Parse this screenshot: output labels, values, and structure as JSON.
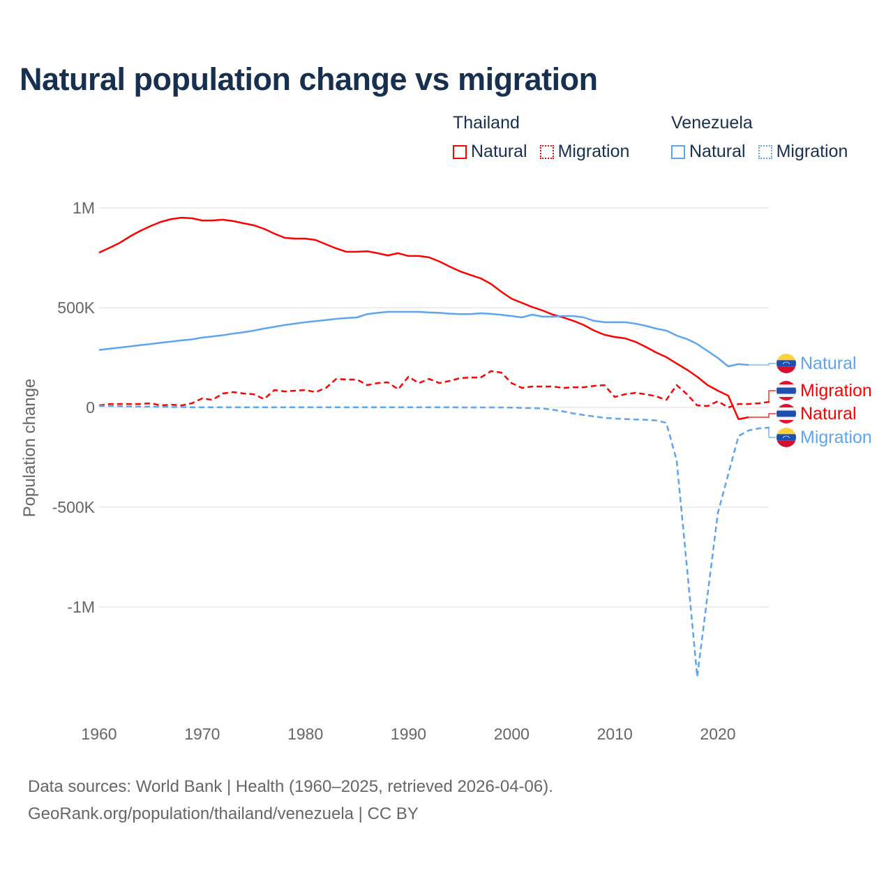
{
  "title": "Natural population change vs migration",
  "legend": {
    "groups": [
      {
        "country": "Thailand",
        "items": [
          {
            "label": "Natural",
            "style": "solid",
            "color": "#ff0000"
          },
          {
            "label": "Migration",
            "style": "dotted",
            "color": "#ff0000"
          }
        ]
      },
      {
        "country": "Venezuela",
        "items": [
          {
            "label": "Natural",
            "style": "solid",
            "color": "#5ea5ee"
          },
          {
            "label": "Migration",
            "style": "dotted",
            "color": "#5ea5ee"
          }
        ]
      }
    ]
  },
  "end_labels": [
    {
      "label": "Natural",
      "country": "Venezuela",
      "color": "#5ea5ee"
    },
    {
      "label": "Migration",
      "country": "Thailand",
      "color": "#ff0000"
    },
    {
      "label": "Natural",
      "country": "Thailand",
      "color": "#ff0000"
    },
    {
      "label": "Migration",
      "country": "Venezuela",
      "color": "#5ea5ee"
    }
  ],
  "footer": {
    "line1": "Data sources: World Bank | Health (1960–2025, retrieved 2026-04-06).",
    "line2": "GeoRank.org/population/thailand/venezuela | CC BY"
  },
  "chart_data": {
    "type": "line",
    "title": "Natural population change vs migration",
    "xlabel": "",
    "ylabel": "Population change",
    "xlim": [
      1960,
      2025
    ],
    "ylim": [
      -1400000,
      1000000
    ],
    "x_ticks": [
      1960,
      1970,
      1980,
      1990,
      2000,
      2010,
      2020
    ],
    "x_tick_labels": [
      "1960",
      "1970",
      "1980",
      "1990",
      "2000",
      "2010",
      "2020"
    ],
    "y_ticks": [
      1000000,
      500000,
      0,
      -500000,
      -1000000
    ],
    "y_tick_labels": [
      "1M",
      "500K",
      "0",
      "-500K",
      "-1M"
    ],
    "grid": true,
    "legend_position": "top-right",
    "series": [
      {
        "name": "Thailand Natural",
        "color": "#ff0000",
        "dash": "solid",
        "start_year": 1960,
        "values": [
          776000,
          800000,
          825000,
          857000,
          885000,
          909000,
          930000,
          944000,
          951000,
          948000,
          937000,
          937000,
          941000,
          934000,
          923000,
          913000,
          895000,
          871000,
          850000,
          846000,
          846000,
          839000,
          818000,
          797000,
          780000,
          780000,
          783000,
          773000,
          762000,
          773000,
          759000,
          759000,
          752000,
          731000,
          706000,
          682000,
          664000,
          647000,
          619000,
          580000,
          545000,
          524000,
          503000,
          486000,
          465000,
          451000,
          434000,
          413000,
          385000,
          364000,
          353000,
          346000,
          329000,
          304000,
          276000,
          252000,
          220000,
          189000,
          154000,
          112000,
          84000,
          59000,
          -59000,
          -49000
        ]
      },
      {
        "name": "Thailand Migration",
        "color": "#ff0000",
        "dash": "dashed",
        "start_year": 1960,
        "values": [
          10000,
          17000,
          17000,
          17000,
          17000,
          21000,
          10000,
          14000,
          10000,
          21000,
          45000,
          38000,
          70000,
          77000,
          70000,
          66000,
          42000,
          87000,
          80000,
          84000,
          87000,
          77000,
          98000,
          143000,
          140000,
          140000,
          112000,
          122000,
          126000,
          91000,
          154000,
          122000,
          143000,
          122000,
          133000,
          147000,
          150000,
          150000,
          182000,
          175000,
          122000,
          98000,
          105000,
          105000,
          105000,
          98000,
          101000,
          101000,
          108000,
          112000,
          52000,
          66000,
          73000,
          66000,
          56000,
          38000,
          112000,
          66000,
          10000,
          7000,
          31000,
          0,
          17000,
          17000,
          21000,
          28000
        ]
      },
      {
        "name": "Venezuela Natural",
        "color": "#5ea5ee",
        "dash": "solid",
        "start_year": 1960,
        "values": [
          288000,
          294000,
          300000,
          306000,
          312000,
          318000,
          324000,
          330000,
          336000,
          341000,
          350000,
          356000,
          362000,
          370000,
          377000,
          385000,
          395000,
          404000,
          413000,
          420000,
          427000,
          433000,
          438000,
          444000,
          448000,
          451000,
          468000,
          474000,
          479000,
          479000,
          479000,
          479000,
          476000,
          474000,
          470000,
          468000,
          468000,
          472000,
          469000,
          464000,
          458000,
          451000,
          465000,
          455000,
          455000,
          458000,
          458000,
          451000,
          434000,
          427000,
          427000,
          427000,
          420000,
          409000,
          395000,
          385000,
          360000,
          343000,
          318000,
          283000,
          248000,
          206000,
          217000,
          213000
        ]
      },
      {
        "name": "Venezuela Migration",
        "color": "#5ea5ee",
        "dash": "dashed",
        "start_year": 1960,
        "values": [
          8000,
          7000,
          6000,
          5000,
          4000,
          4000,
          3000,
          2000,
          2000,
          1000,
          1000,
          1000,
          1000,
          1000,
          1000,
          1000,
          1000,
          1000,
          1000,
          1000,
          1000,
          1000,
          1000,
          1000,
          1000,
          1000,
          1000,
          1000,
          1000,
          1000,
          1000,
          1000,
          1000,
          1000,
          1000,
          0,
          0,
          0,
          0,
          0,
          -1000,
          -2000,
          -3000,
          -5000,
          -12000,
          -20000,
          -30000,
          -38000,
          -45000,
          -52000,
          -56000,
          -58000,
          -60000,
          -62000,
          -65000,
          -77000,
          -266000,
          -800000,
          -1350000,
          -940000,
          -528000,
          -336000,
          -143000,
          -115000,
          -105000,
          -101000
        ]
      }
    ]
  }
}
